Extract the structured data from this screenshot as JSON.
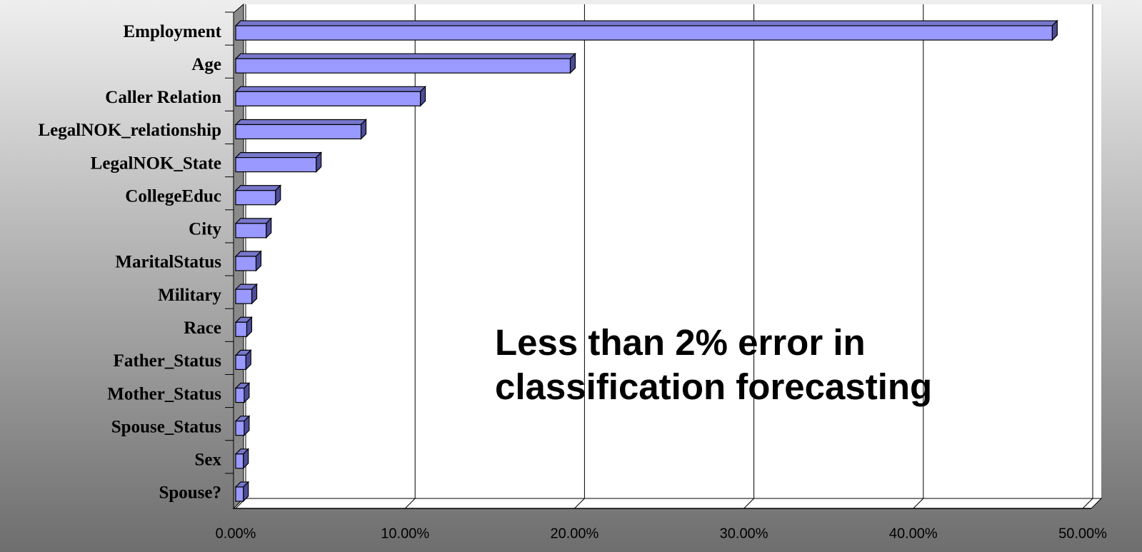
{
  "chart_data": {
    "type": "bar",
    "orientation": "horizontal",
    "categories": [
      "Employment",
      "Age",
      "Caller Relation",
      "LegalNOK_relationship",
      "LegalNOK_State",
      "CollegeEduc",
      "City",
      "MaritalStatus",
      "Military",
      "Race",
      "Father_Status",
      "Mother_Status",
      "Spouse_Status",
      "Sex",
      "Spouse?"
    ],
    "values": [
      48.2,
      19.75,
      10.9,
      7.4,
      4.75,
      2.35,
      1.8,
      1.2,
      0.95,
      0.65,
      0.6,
      0.5,
      0.5,
      0.45,
      0.45
    ],
    "color": "#9999ff",
    "xlim": [
      0,
      50
    ],
    "xticks": [
      {
        "value": 0,
        "label": "0.00%"
      },
      {
        "value": 10,
        "label": "10.00%"
      },
      {
        "value": 20,
        "label": "20.00%"
      },
      {
        "value": 30,
        "label": "30.00%"
      },
      {
        "value": 40,
        "label": "40.00%"
      },
      {
        "value": 50,
        "label": "50.00%"
      }
    ],
    "grid": true,
    "annotation": [
      "Less than 2% error in",
      "classification forecasting"
    ]
  }
}
